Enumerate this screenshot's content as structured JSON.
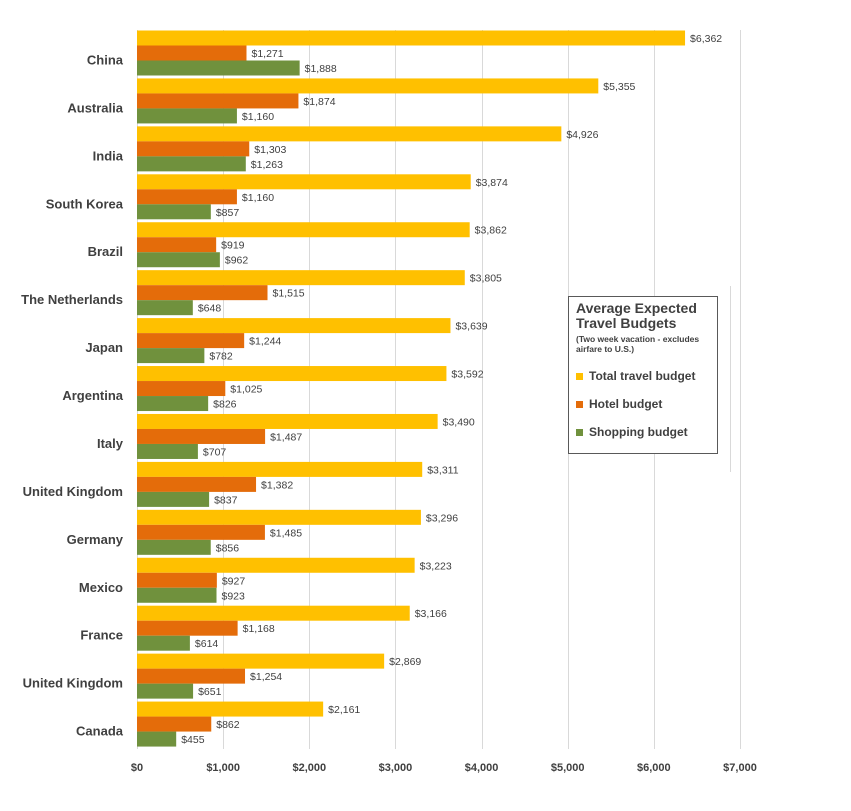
{
  "chart_data": {
    "type": "bar",
    "orientation": "horizontal",
    "title": "Average Expected Travel Budgets",
    "subtitle": "(Two week vacation - excludes airfare to U.S.)",
    "categories": [
      "China",
      "Australia",
      "India",
      "South Korea",
      "Brazil",
      "The Netherlands",
      "Japan",
      "Argentina",
      "Italy",
      "United Kingdom",
      "Germany",
      "Mexico",
      "France",
      "United Kingdom",
      "Canada"
    ],
    "series": [
      {
        "name": "Total travel budget",
        "color": "#FFC000",
        "values": [
          6362,
          5355,
          4926,
          3874,
          3862,
          3805,
          3639,
          3592,
          3490,
          3311,
          3296,
          3223,
          3166,
          2869,
          2161
        ],
        "labels": [
          "$6,362",
          "$5,355",
          "$4,926",
          "$3,874",
          "$3,862",
          "$3,805",
          "$3,639",
          "$3,592",
          "$3,490",
          "$3,311",
          "$3,296",
          "$3,223",
          "$3,166",
          "$2,869",
          "$2,161"
        ]
      },
      {
        "name": "Hotel budget",
        "color": "#E46C0A",
        "values": [
          1271,
          1874,
          1303,
          1160,
          919,
          1515,
          1244,
          1025,
          1487,
          1382,
          1485,
          927,
          1168,
          1254,
          862
        ],
        "labels": [
          "$1,271",
          "$1,874",
          "$1,303",
          "$1,160",
          "$919",
          "$1,515",
          "$1,244",
          "$1,025",
          "$1,487",
          "$1,382",
          "$1,485",
          "$927",
          "$1,168",
          "$1,254",
          "$862"
        ]
      },
      {
        "name": "Shopping budget",
        "color": "#70913D",
        "values": [
          1888,
          1160,
          1263,
          857,
          962,
          648,
          782,
          826,
          707,
          837,
          856,
          923,
          614,
          651,
          455
        ],
        "labels": [
          "$1,888",
          "$1,160",
          "$1,263",
          "$857",
          "$962",
          "$648",
          "$782",
          "$826",
          "$707",
          "$837",
          "$856",
          "$923",
          "$614",
          "$651",
          "$455"
        ]
      }
    ],
    "xlim": [
      0,
      7000
    ],
    "xticks": [
      0,
      1000,
      2000,
      3000,
      4000,
      5000,
      6000,
      7000
    ],
    "xtick_labels": [
      "$0",
      "$1,000",
      "$2,000",
      "$3,000",
      "$4,000",
      "$5,000",
      "$6,000",
      "$7,000"
    ],
    "xlabel": "",
    "ylabel": "",
    "grid": true,
    "legend_position": "right-middle"
  }
}
